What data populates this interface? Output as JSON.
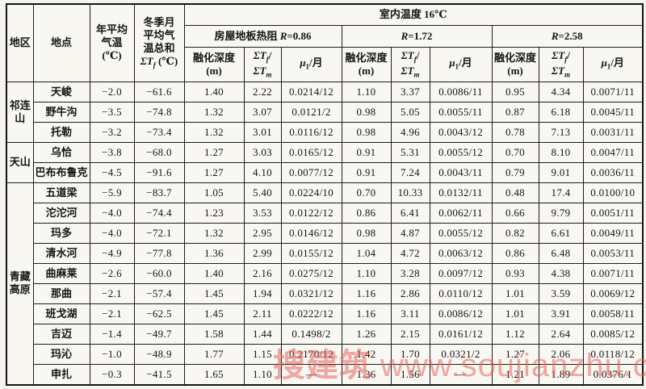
{
  "page": {
    "watermark": {
      "text_cn": "搜建筑",
      "text_url": "www.soujianzhu.cn",
      "color": "#e8645c"
    }
  },
  "table": {
    "header": {
      "region": "地区",
      "location": "地点",
      "annual_temp": {
        "l1": "年平均",
        "l2": "气温",
        "l3": "(℃)"
      },
      "winter_sum": {
        "l1": "冬季月",
        "l2": "平均气",
        "l3": "温总和",
        "sigma": "ΣT",
        "sub": "f",
        "unit": " (℃)"
      },
      "indoor": "室内温度 16℃",
      "r_groups": [
        {
          "prefix": "房屋地板热阻 ",
          "r": "R",
          "eq": "=0.86"
        },
        {
          "prefix": "",
          "r": "R",
          "eq": "=1.72"
        },
        {
          "prefix": "",
          "r": "R",
          "eq": "=2.58"
        }
      ],
      "sub_cols": {
        "depth_l1": "融化深度",
        "depth_l2": "(m)",
        "sigma": "ΣT",
        "sub_f": "f",
        "slash": "/",
        "sub_m": "m",
        "mu": "μ",
        "mu_sub": "1",
        "mu_unit": "/月"
      }
    },
    "regions": [
      {
        "label": "祁连山",
        "rowspan": 3
      },
      {
        "label": "天山",
        "rowspan": 2
      },
      {
        "label": "青藏高原",
        "rowspan": 10
      }
    ],
    "rows": [
      {
        "location": "天峻",
        "values": [
          "−2.0",
          "−61.6",
          "1.40",
          "2.22",
          "0.0214/12",
          "1.10",
          "3.37",
          "0.0086/11",
          "0.95",
          "4.34",
          "0.0071/11"
        ]
      },
      {
        "location": "野牛沟",
        "values": [
          "−3.5",
          "−74.8",
          "1.32",
          "3.07",
          "0.0121/2",
          "0.98",
          "5.05",
          "0.0055/11",
          "0.87",
          "6.18",
          "0.0045/11"
        ]
      },
      {
        "location": "托勒",
        "values": [
          "−3.2",
          "−73.4",
          "1.32",
          "3.01",
          "0.0116/12",
          "0.98",
          "4.96",
          "0.0043/12",
          "0.78",
          "7.13",
          "0.0031/11"
        ]
      },
      {
        "location": "乌恰",
        "values": [
          "−3.8",
          "−68.0",
          "1.27",
          "3.03",
          "0.0165/12",
          "0.91",
          "5.31",
          "0.0055/12",
          "0.70",
          "8.10",
          "0.0047/11"
        ]
      },
      {
        "location": "巴布布鲁克",
        "values": [
          "−4.5",
          "−91.6",
          "1.27",
          "4.10",
          "0.0077/12",
          "0.91",
          "7.24",
          "0.0043/11",
          "0.79",
          "9.01",
          "0.0036/11"
        ]
      },
      {
        "location": "五道梁",
        "values": [
          "−5.9",
          "−83.7",
          "1.05",
          "5.40",
          "0.0224/10",
          "0.70",
          "10.33",
          "0.0132/11",
          "0.48",
          "17.4",
          "0.0100/10"
        ]
      },
      {
        "location": "沱沱河",
        "values": [
          "−4.0",
          "−74.4",
          "1.23",
          "3.53",
          "0.0122/12",
          "0.86",
          "6.41",
          "0.0062/11",
          "0.66",
          "9.79",
          "0.0051/11"
        ]
      },
      {
        "location": "玛多",
        "values": [
          "−4.0",
          "−72.1",
          "1.32",
          "2.95",
          "0.0146/12",
          "0.98",
          "4.87",
          "0.0055/12",
          "0.82",
          "6.61",
          "0.0049/11"
        ]
      },
      {
        "location": "清水河",
        "values": [
          "−4.9",
          "−77.8",
          "1.36",
          "2.99",
          "0.0155/12",
          "1.04",
          "4.72",
          "0.0063/12",
          "0.86",
          "6.48",
          "0.0053/11"
        ]
      },
      {
        "location": "曲麻莱",
        "values": [
          "−2.6",
          "−60.0",
          "1.40",
          "2.16",
          "0.0275/12",
          "1.10",
          "3.28",
          "0.0097/12",
          "0.93",
          "4.38",
          "0.0071/11"
        ]
      },
      {
        "location": "那曲",
        "values": [
          "−2.1",
          "−57.4",
          "1.45",
          "1.94",
          "0.0321/12",
          "1.16",
          "2.86",
          "0.0110/12",
          "1.01",
          "3.59",
          "0.0069/12"
        ]
      },
      {
        "location": "班戈湖",
        "values": [
          "−2.1",
          "−62.5",
          "1.45",
          "2.11",
          "0.0222/12",
          "1.16",
          "3.11",
          "0.0086/12",
          "1.01",
          "3.91",
          "0.0058/11"
        ]
      },
      {
        "location": "吉迈",
        "values": [
          "−1.4",
          "−49.7",
          "1.58",
          "1.44",
          "0.1498/2",
          "1.26",
          "2.15",
          "0.0161/12",
          "1.12",
          "2.64",
          "0.0085/12"
        ]
      },
      {
        "location": "玛沁",
        "values": [
          "−1.0",
          "−48.9",
          "1.77",
          "1.15",
          "0.2170/12",
          "1.42",
          "1.70",
          "0.0321/2",
          "1.27",
          "2.06",
          "0.0118/12"
        ]
      },
      {
        "location": "申扎",
        "values": [
          "−0.3",
          "−41.5",
          "1.65",
          "1.10",
          "—",
          "1.36",
          "1.56",
          "—",
          "1.21",
          "1.89",
          "0.0376/1"
        ]
      }
    ]
  }
}
